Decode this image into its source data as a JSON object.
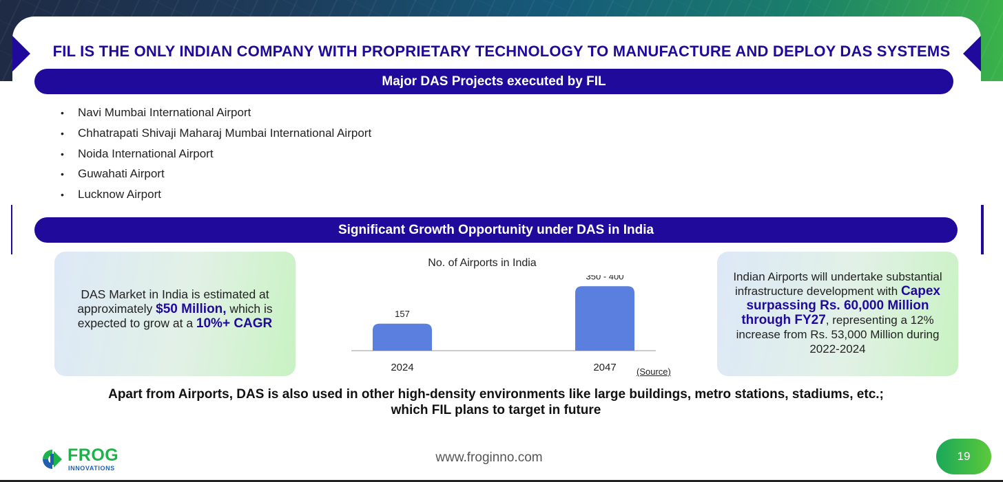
{
  "slide": {
    "headline": "FIL IS THE ONLY INDIAN COMPANY WITH PROPRIETARY TECHNOLOGY TO MANUFACTURE AND DEPLOY DAS SYSTEMS",
    "section1_title": "Major DAS Projects executed by FIL",
    "projects": [
      "Navi Mumbai International Airport",
      "Chhatrapati Shivaji Maharaj Mumbai International Airport",
      "Noida International Airport",
      "Guwahati Airport",
      "Lucknow Airport"
    ],
    "section2_title": "Significant Growth Opportunity under DAS in India",
    "left_box": {
      "text1": "DAS Market in India is estimated at approximately ",
      "highlight1": "$50 Million,",
      "text2": " which is expected to grow at a ",
      "highlight2": "10%+ CAGR"
    },
    "right_box": {
      "text1": "Indian Airports will undertake substantial infrastructure development with ",
      "highlight": "Capex surpassing Rs. 60,000 Million through FY27",
      "text2": ", representing a 12% increase from Rs. 53,000 Million during 2022-2024"
    },
    "source_label": "(Source)",
    "bottom_note": "Apart from Airports, DAS is also used in other high-density environments like large buildings, metro stations, stadiums, etc.; which FIL plans to target in future"
  },
  "chart_data": {
    "type": "bar",
    "title": "No. of Airports in India",
    "categories": [
      "2024",
      "2047"
    ],
    "values": [
      157,
      375
    ],
    "data_labels": [
      "157",
      "350 - 400"
    ],
    "xlabel": "",
    "ylabel": "",
    "ylim": [
      0,
      420
    ],
    "grid": false,
    "bar_color": "#5a7fde"
  },
  "footer": {
    "logo_main": "FROG",
    "logo_sub": "INNOVATIONS",
    "website": "www.froginno.com",
    "page_number": "19"
  },
  "colors": {
    "primary": "#1f0a9c",
    "brand_green": "#1bb34a",
    "brand_blue": "#1f5fb0"
  }
}
